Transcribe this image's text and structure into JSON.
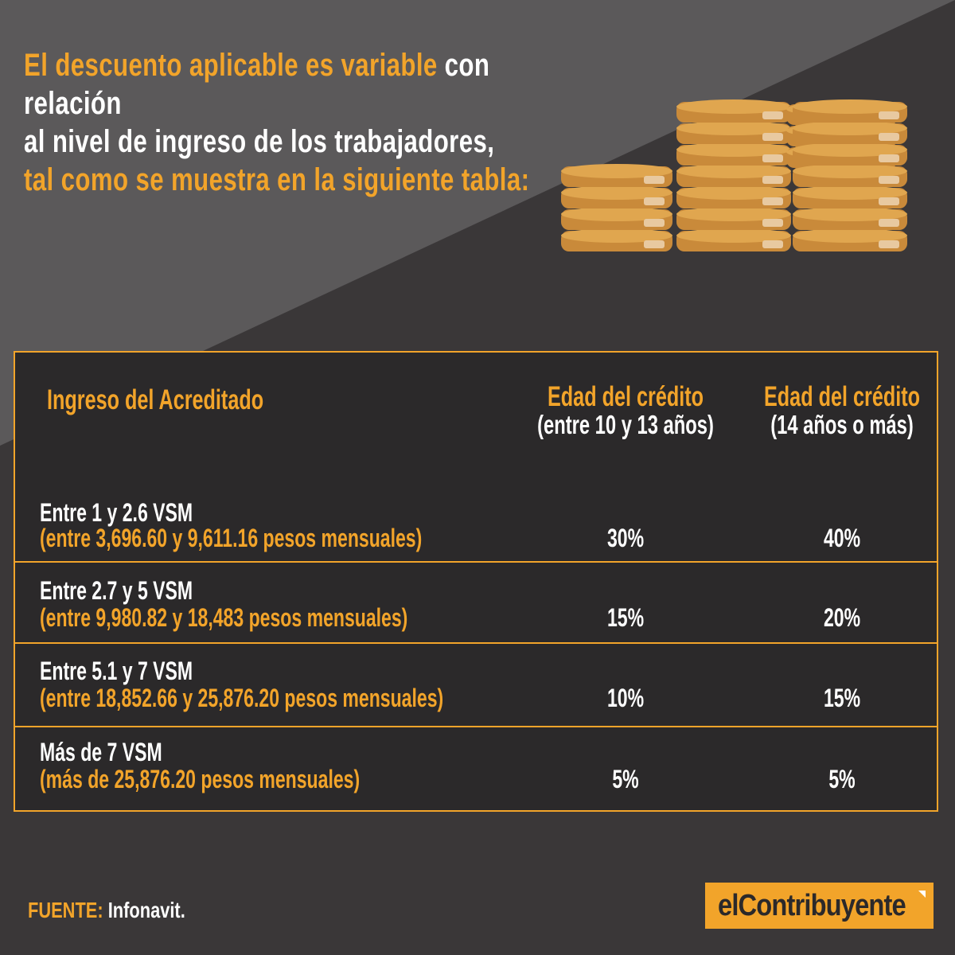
{
  "headline": {
    "line1_accent": "El descuento aplicable es variable",
    "line1_rest": " con relación",
    "line2": "al nivel de ingreso de los trabajadores,",
    "line3": "tal como se muestra en la siguiente tabla:"
  },
  "table": {
    "headers": {
      "income": "Ingreso del  Acreditado",
      "col1_title": "Edad del crédito",
      "col1_sub": "(entre 10 y 13 años)",
      "col2_title": "Edad del crédito",
      "col2_sub": "(14 años o más)"
    },
    "rows": [
      {
        "label": "Entre 1 y 2.6 VSM",
        "range": "(entre 3,696.60 y 9,611.16 pesos mensuales)",
        "col1": "30%",
        "col2": "40%"
      },
      {
        "label": "Entre 2.7 y 5 VSM",
        "range": "(entre 9,980.82 y 18,483 pesos mensuales)",
        "col1": "15%",
        "col2": "20%"
      },
      {
        "label": "Entre 5.1 y 7 VSM",
        "range": "(entre 18,852.66 y 25,876.20 pesos mensuales)",
        "col1": "10%",
        "col2": "15%"
      },
      {
        "label": "Más de 7 VSM",
        "range": "(más de 25,876.20 pesos mensuales)",
        "col1": "5%",
        "col2": "5%"
      }
    ]
  },
  "footer": {
    "source_key": "FUENTE:",
    "source_value": " Infonavit.",
    "logo_text": "elContribuyente"
  },
  "colors": {
    "accent": "#f2a42a",
    "background_dark": "#3a3738",
    "background_light": "#5a5859",
    "table_background": "#2b292a",
    "coin_face": "#e0a64f",
    "coin_edge": "#c98a3a"
  },
  "icons": {
    "decoration": "coin-stacks-icon"
  }
}
